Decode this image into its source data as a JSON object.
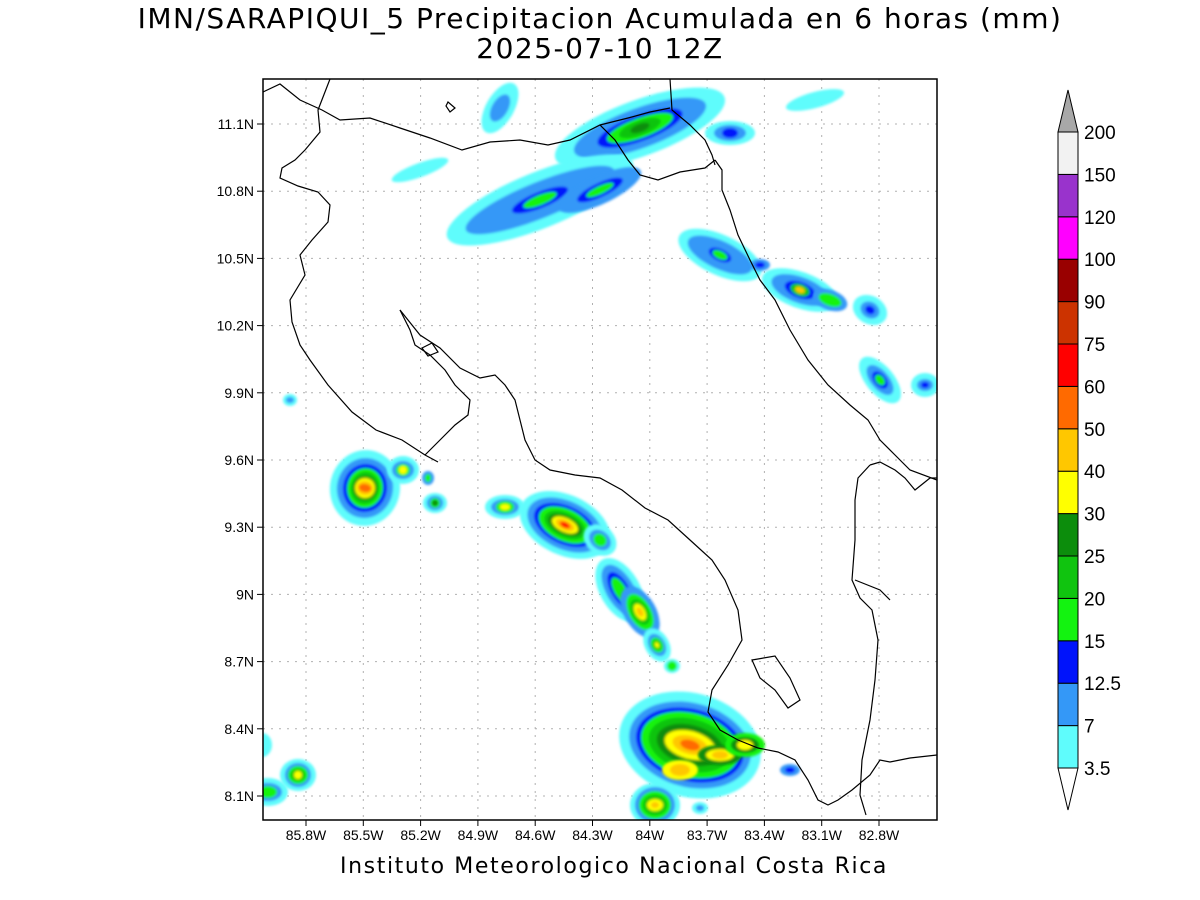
{
  "title": {
    "line1": "IMN/SARAPIQUI_5 Precipitacion Acumulada en 6 horas (mm)",
    "line2": "2025-07-10 12Z"
  },
  "footer": "Instituto Meteorologico Nacional Costa Rica",
  "axes": {
    "lat_labels": [
      "11.1N",
      "10.8N",
      "10.5N",
      "10.2N",
      "9.9N",
      "9.6N",
      "9.3N",
      "9N",
      "8.7N",
      "8.4N",
      "8.1N"
    ],
    "lon_labels": [
      "85.8W",
      "85.5W",
      "85.2W",
      "84.9W",
      "84.6W",
      "84.3W",
      "84W",
      "83.7W",
      "83.4W",
      "83.1W",
      "82.8W"
    ]
  },
  "colorbar": {
    "labels": [
      "3.5",
      "7",
      "12.5",
      "15",
      "20",
      "25",
      "30",
      "40",
      "50",
      "60",
      "75",
      "90",
      "100",
      "120",
      "150",
      "200"
    ],
    "colors": [
      "#5ffcfc",
      "#3498f7",
      "#0013fb",
      "#13f310",
      "#10c40f",
      "#0c8d0c",
      "#ffff00",
      "#ffc700",
      "#ff6a00",
      "#ff0000",
      "#cc3300",
      "#990000",
      "#ff00ff",
      "#9933cc",
      "#f2f2f2",
      "#a8a8a8"
    ]
  }
}
